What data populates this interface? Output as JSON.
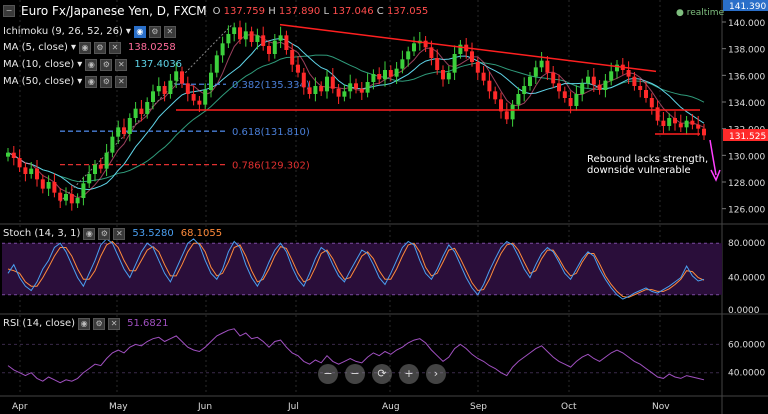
{
  "header": {
    "symbol": "Euro Fx/Japanese Yen, D, FXCM",
    "o_label": "O",
    "o_value": "137.759",
    "h_label": "H",
    "h_value": "137.890",
    "l_label": "L",
    "l_value": "137.046",
    "c_label": "C",
    "c_value": "137.055",
    "realtime": "realtime"
  },
  "indicators": [
    {
      "label": "Ichimoku (9, 26, 52, 26)",
      "value": "",
      "color": "#e8e8e8"
    },
    {
      "label": "MA (5, close)",
      "value": "138.0258",
      "color": "#ff6b9a"
    },
    {
      "label": "MA (10, close)",
      "value": "137.4036",
      "color": "#5fd4e8"
    },
    {
      "label": "MA (50, close)",
      "value": "",
      "color": "#e8e8e8"
    }
  ],
  "fib_levels": [
    {
      "label": "0.382(135.334)",
      "value": 135.334,
      "color": "#4a7fd8"
    },
    {
      "label": "0.618(131.810)",
      "value": 131.81,
      "color": "#4a7fd8"
    },
    {
      "label": "0.786(129.302)",
      "value": 129.302,
      "color": "#e03030"
    }
  ],
  "annotation": {
    "line1": "Rebound lacks strength,",
    "line2": "downside vulnerable"
  },
  "stoch": {
    "label": "Stoch (14, 3, 1)",
    "k_value": "53.5280",
    "d_value": "68.1055",
    "ticks": [
      "80.0000",
      "40.0000",
      "0.0000"
    ]
  },
  "rsi": {
    "label": "RSI (14, close)",
    "value": "51.6821",
    "ticks": [
      "60.0000",
      "40.0000"
    ]
  },
  "price_axis": {
    "ticks": [
      "140.000",
      "138.000",
      "136.000",
      "134.000",
      "132.000",
      "130.000",
      "128.000",
      "126.000"
    ],
    "top_tag": "141.390",
    "last_tag": "131.525"
  },
  "nav_buttons": [
    "−",
    "−",
    "⟳",
    "+",
    "›"
  ],
  "chart_data": {
    "type": "candlestick",
    "price_range": [
      125,
      141.5
    ],
    "months": [
      "Apr",
      "May",
      "Jun",
      "Jul",
      "Aug",
      "Sep",
      "Oct",
      "Nov"
    ],
    "closes": [
      130.2,
      129.8,
      129.1,
      128.6,
      129.0,
      128.2,
      127.5,
      128.0,
      127.2,
      126.6,
      127.1,
      126.4,
      126.8,
      127.9,
      128.6,
      129.3,
      129.0,
      130.2,
      131.4,
      132.1,
      131.6,
      132.8,
      133.5,
      133.1,
      134.0,
      134.8,
      135.2,
      134.6,
      135.6,
      136.3,
      135.4,
      134.6,
      134.1,
      133.8,
      134.9,
      136.2,
      137.5,
      138.4,
      139.1,
      139.6,
      138.7,
      139.3,
      138.5,
      139.0,
      138.2,
      137.6,
      138.6,
      139.0,
      137.9,
      136.8,
      136.2,
      135.1,
      134.6,
      135.2,
      134.8,
      135.9,
      135.0,
      134.4,
      134.8,
      135.4,
      135.0,
      134.7,
      135.5,
      136.1,
      135.7,
      136.4,
      135.9,
      136.5,
      137.2,
      137.8,
      138.4,
      138.6,
      138.1,
      137.3,
      136.4,
      135.7,
      136.2,
      137.6,
      138.3,
      137.8,
      137.0,
      136.2,
      135.6,
      134.8,
      134.2,
      133.3,
      132.7,
      133.8,
      134.6,
      135.2,
      135.9,
      136.6,
      137.1,
      136.2,
      135.4,
      134.8,
      134.3,
      133.7,
      134.6,
      135.4,
      135.9,
      135.3,
      134.9,
      135.6,
      136.3,
      136.8,
      136.4,
      135.9,
      135.2,
      134.9,
      134.3,
      133.6,
      132.6,
      132.2,
      132.8,
      132.4,
      132.1,
      132.6,
      132.3,
      132.0,
      131.5
    ],
    "ma5_value": 138.0258,
    "ma10_value": 137.4036,
    "trendline_top": {
      "from": 139.8,
      "to": 136.3
    },
    "support_line": 133.4,
    "stoch_k": [
      45,
      55,
      40,
      30,
      25,
      35,
      50,
      60,
      75,
      80,
      70,
      55,
      40,
      30,
      45,
      60,
      78,
      85,
      80,
      65,
      50,
      40,
      55,
      70,
      80,
      75,
      60,
      45,
      35,
      50,
      65,
      80,
      85,
      78,
      60,
      45,
      38,
      50,
      70,
      82,
      75,
      55,
      40,
      30,
      42,
      58,
      72,
      80,
      70,
      52,
      38,
      30,
      45,
      62,
      75,
      70,
      55,
      42,
      35,
      48,
      60,
      72,
      68,
      55,
      40,
      32,
      45,
      60,
      75,
      82,
      78,
      60,
      45,
      38,
      50,
      65,
      78,
      70,
      55,
      40,
      28,
      20,
      32,
      48,
      62,
      75,
      82,
      78,
      65,
      50,
      40,
      55,
      68,
      75,
      70,
      58,
      45,
      38,
      50,
      62,
      70,
      65,
      50,
      38,
      28,
      20,
      15,
      18,
      22,
      25,
      28,
      24,
      22,
      26,
      30,
      35,
      40,
      53.5,
      42,
      36,
      38
    ],
    "stoch_d": [
      50,
      48,
      45,
      35,
      30,
      30,
      40,
      52,
      65,
      75,
      75,
      65,
      50,
      38,
      38,
      48,
      65,
      78,
      82,
      75,
      60,
      48,
      48,
      60,
      72,
      76,
      70,
      55,
      42,
      42,
      55,
      70,
      80,
      80,
      70,
      52,
      42,
      45,
      58,
      75,
      78,
      65,
      48,
      35,
      38,
      50,
      65,
      76,
      74,
      60,
      45,
      35,
      38,
      52,
      68,
      72,
      62,
      48,
      38,
      40,
      52,
      65,
      70,
      62,
      48,
      38,
      38,
      50,
      65,
      78,
      80,
      70,
      52,
      42,
      45,
      58,
      72,
      74,
      62,
      48,
      34,
      25,
      26,
      38,
      54,
      68,
      78,
      80,
      72,
      58,
      45,
      48,
      62,
      72,
      72,
      62,
      50,
      42,
      45,
      58,
      68,
      68,
      56,
      42,
      32,
      24,
      18,
      17,
      20,
      23,
      26,
      26,
      24,
      24,
      27,
      32,
      38,
      48,
      47,
      40,
      37
    ],
    "rsi": [
      45,
      42,
      40,
      38,
      40,
      36,
      34,
      37,
      35,
      33,
      35,
      34,
      36,
      40,
      43,
      46,
      45,
      50,
      54,
      56,
      54,
      58,
      60,
      59,
      62,
      64,
      65,
      62,
      64,
      66,
      62,
      58,
      56,
      55,
      58,
      62,
      66,
      68,
      70,
      71,
      66,
      68,
      64,
      65,
      62,
      58,
      62,
      63,
      58,
      54,
      52,
      48,
      46,
      49,
      47,
      52,
      48,
      46,
      48,
      50,
      48,
      47,
      51,
      54,
      52,
      55,
      53,
      56,
      58,
      61,
      63,
      64,
      61,
      56,
      52,
      48,
      51,
      57,
      60,
      57,
      53,
      50,
      48,
      45,
      43,
      40,
      38,
      44,
      48,
      51,
      54,
      57,
      59,
      55,
      51,
      48,
      46,
      44,
      48,
      51,
      53,
      50,
      48,
      51,
      54,
      56,
      54,
      51,
      48,
      46,
      43,
      40,
      37,
      36,
      39,
      37,
      36,
      38,
      37,
      36,
      35
    ]
  }
}
